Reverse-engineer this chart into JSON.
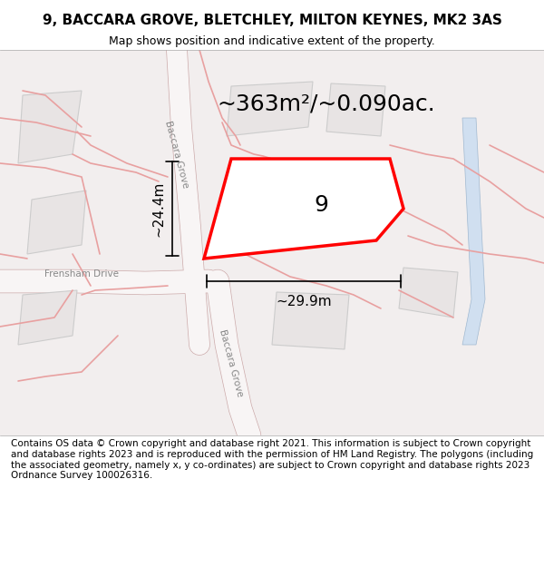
{
  "title_line1": "9, BACCARA GROVE, BLETCHLEY, MILTON KEYNES, MK2 3AS",
  "title_line2": "Map shows position and indicative extent of the property.",
  "footer_text": "Contains OS data © Crown copyright and database right 2021. This information is subject to Crown copyright and database rights 2023 and is reproduced with the permission of HM Land Registry. The polygons (including the associated geometry, namely x, y co-ordinates) are subject to Crown copyright and database rights 2023 Ordnance Survey 100026316.",
  "area_label": "~363m²/~0.090ac.",
  "plot_number": "9",
  "dim_horizontal": "~29.9m",
  "dim_vertical": "~24.4m",
  "street_label_top": "Baccara Grove",
  "street_label_bottom": "Baccara Grove",
  "street_label_left": "Frensham Drive",
  "bg_color": "#f5f0f0",
  "map_bg": "#f2eeee",
  "building_color": "#e8e4e4",
  "building_edge": "#cccccc",
  "road_color": "#ffffff",
  "road_edge": "#dddddd",
  "plot_edge_color": "#ff0000",
  "plot_fill": "none",
  "water_color": "#d0dff0",
  "dim_line_color": "#000000",
  "road_label_color": "#888888",
  "title_fontsize": 11,
  "subtitle_fontsize": 9,
  "footer_fontsize": 7.5,
  "area_fontsize": 18,
  "plot_num_fontsize": 18,
  "dim_fontsize": 11
}
